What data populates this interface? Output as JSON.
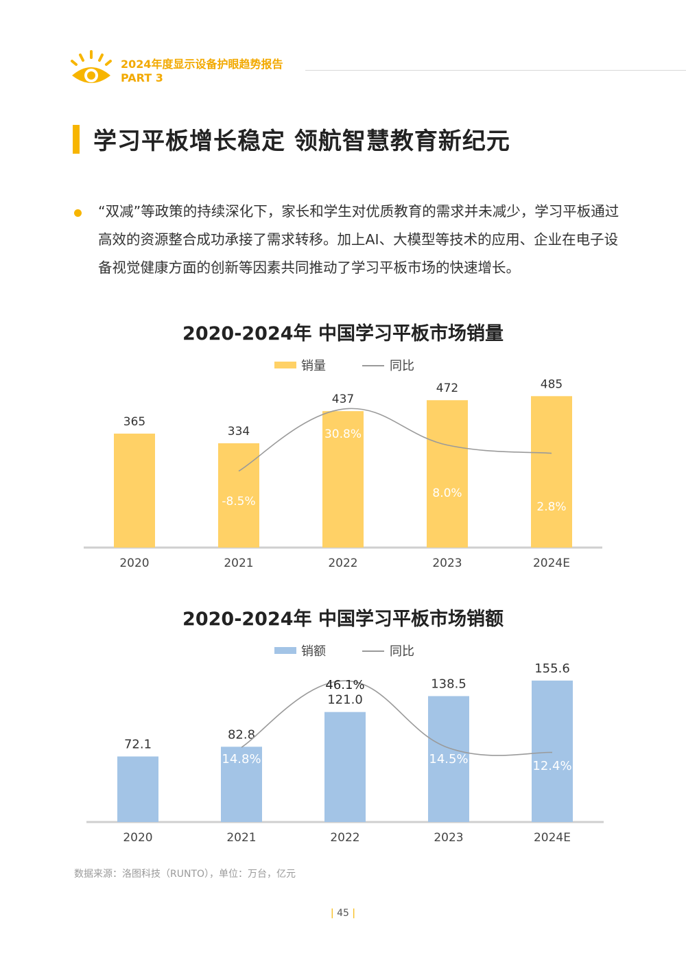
{
  "header": {
    "report_title": "2024年度显示设备护眼趋势报告",
    "part": "PART 3"
  },
  "section_title": "学习平板增长稳定 领航智慧教育新纪元",
  "paragraph": "“双减”等政策的持续深化下，家长和学生对优质教育的需求并未减少，学习平板通过高效的资源整合成功承接了需求转移。加上AI、大模型等技术的应用、企业在电子设备视觉健康方面的创新等因素共同推动了学习平板市场的快速增长。",
  "chart_data": [
    {
      "type": "bar",
      "title": "2020-2024年 中国学习平板市场销量",
      "categories": [
        "2020",
        "2021",
        "2022",
        "2023",
        "2024E"
      ],
      "series": [
        {
          "name": "销量",
          "values": [
            365,
            334,
            437,
            472,
            485
          ],
          "labels": [
            "365",
            "334",
            "437",
            "472",
            "485"
          ]
        },
        {
          "name": "同比",
          "type": "line",
          "values": [
            null,
            -8.5,
            30.8,
            8.0,
            2.8
          ],
          "labels": [
            "",
            "-8.5%",
            "30.8%",
            "8.0%",
            "2.8%"
          ]
        }
      ],
      "colors": {
        "bar": "#ffd166",
        "line": "#9a9a9a"
      }
    },
    {
      "type": "bar",
      "title": "2020-2024年 中国学习平板市场销额",
      "categories": [
        "2020",
        "2021",
        "2022",
        "2023",
        "2024E"
      ],
      "series": [
        {
          "name": "销额",
          "values": [
            72.1,
            82.8,
            121.0,
            138.5,
            155.6
          ],
          "labels": [
            "72.1",
            "82.8",
            "121.0",
            "138.5",
            "155.6"
          ]
        },
        {
          "name": "同比",
          "type": "line",
          "values": [
            null,
            14.8,
            46.1,
            14.5,
            12.4
          ],
          "labels": [
            "",
            "14.8%",
            "46.1%",
            "14.5%",
            "12.4%"
          ]
        }
      ],
      "colors": {
        "bar": "#a3c4e6",
        "line": "#9a9a9a"
      }
    }
  ],
  "source": "数据来源：洛图科技（RUNTO），单位：万台，亿元",
  "page_number": "45"
}
